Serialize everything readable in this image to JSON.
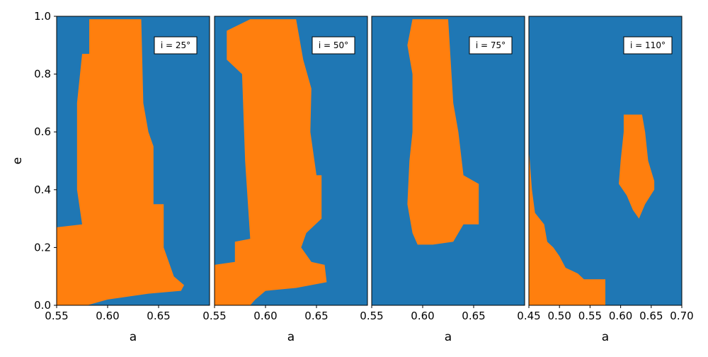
{
  "chart_data": [
    {
      "type": "area",
      "annotation": "i = 25°",
      "xlabel": "a",
      "ylabel": "e",
      "xlim": [
        0.55,
        0.7
      ],
      "ylim": [
        0,
        1
      ],
      "xticks": [
        0.55,
        {
          "value": 0.6,
          "label": "0.60"
        },
        0.65
      ],
      "yticks": [
        {
          "value": 0,
          "label": "0.0"
        },
        0.2,
        0.4,
        0.6,
        0.8,
        {
          "value": 1,
          "label": "1.0"
        }
      ],
      "background_color": "#1f77b4",
      "color": "#ff7f0e",
      "regions": [
        {
          "x": [
            0.55,
            0.55,
            0.575,
            0.57,
            0.57,
            0.575,
            0.582,
            0.582,
            0.633,
            0.635,
            0.64,
            0.645,
            0.645,
            0.655,
            0.655,
            0.665,
            0.675,
            0.672,
            0.64,
            0.62,
            0.6,
            0.58
          ],
          "y": [
            0,
            0.27,
            0.28,
            0.4,
            0.7,
            0.87,
            0.87,
            0.99,
            0.99,
            0.7,
            0.6,
            0.55,
            0.35,
            0.35,
            0.2,
            0.1,
            0.07,
            0.05,
            0.04,
            0.03,
            0.02,
            0
          ]
        }
      ]
    },
    {
      "type": "area",
      "annotation": "i = 50°",
      "xlabel": "a",
      "xlim": [
        0.55,
        0.7
      ],
      "ylim": [
        0,
        1
      ],
      "xticks": [
        0.55,
        {
          "value": 0.6,
          "label": "0.60"
        },
        0.65
      ],
      "background_color": "#1f77b4",
      "color": "#ff7f0e",
      "regions": [
        {
          "x": [
            0.55,
            0.55,
            0.57,
            0.57,
            0.585,
            0.58,
            0.577,
            0.562,
            0.562,
            0.585,
            0.63,
            0.637,
            0.645,
            0.644,
            0.65,
            0.655,
            0.655,
            0.64,
            0.635,
            0.645,
            0.658,
            0.66,
            0.63,
            0.6,
            0.59,
            0.585
          ],
          "y": [
            0,
            0.14,
            0.15,
            0.22,
            0.23,
            0.5,
            0.8,
            0.85,
            0.95,
            0.99,
            0.99,
            0.85,
            0.75,
            0.6,
            0.45,
            0.45,
            0.3,
            0.25,
            0.2,
            0.15,
            0.14,
            0.08,
            0.06,
            0.05,
            0.02,
            0
          ]
        }
      ]
    },
    {
      "type": "area",
      "annotation": "i = 75°",
      "xlabel": "a",
      "xlim": [
        0.55,
        0.7
      ],
      "ylim": [
        0,
        1
      ],
      "xticks": [
        0.55,
        {
          "value": 0.6,
          "label": "0.60"
        },
        0.65
      ],
      "background_color": "#1f77b4",
      "color": "#ff7f0e",
      "regions": [
        {
          "x": [
            0.59,
            0.625,
            0.63,
            0.635,
            0.64,
            0.655,
            0.655,
            0.64,
            0.63,
            0.61,
            0.595,
            0.59,
            0.585,
            0.587,
            0.59,
            0.59,
            0.585
          ],
          "y": [
            0.99,
            0.99,
            0.7,
            0.6,
            0.45,
            0.42,
            0.28,
            0.28,
            0.22,
            0.21,
            0.21,
            0.25,
            0.35,
            0.5,
            0.6,
            0.8,
            0.9
          ]
        }
      ]
    },
    {
      "type": "area",
      "annotation": "i = 110°",
      "xlabel": "a",
      "xlim": [
        0.45,
        0.7
      ],
      "ylim": [
        0,
        1
      ],
      "xticks": [
        0.45,
        {
          "value": 0.5,
          "label": "0.50"
        },
        0.55,
        {
          "value": 0.6,
          "label": "0.60"
        },
        0.65,
        {
          "value": 0.7,
          "label": "0.70"
        }
      ],
      "background_color": "#1f77b4",
      "color": "#ff7f0e",
      "regions": [
        {
          "x": [
            0.45,
            0.45,
            0.455,
            0.46,
            0.475,
            0.48,
            0.49,
            0.5,
            0.51,
            0.52,
            0.53,
            0.54,
            0.575,
            0.575
          ],
          "y": [
            0,
            0.54,
            0.4,
            0.32,
            0.28,
            0.22,
            0.2,
            0.17,
            0.13,
            0.12,
            0.11,
            0.09,
            0.09,
            0
          ]
        },
        {
          "x": [
            0.605,
            0.635,
            0.64,
            0.645,
            0.655,
            0.655,
            0.64,
            0.63,
            0.62,
            0.61,
            0.597,
            0.6,
            0.605
          ],
          "y": [
            0.66,
            0.66,
            0.6,
            0.5,
            0.43,
            0.4,
            0.35,
            0.3,
            0.33,
            0.38,
            0.42,
            0.5,
            0.6
          ]
        }
      ]
    }
  ]
}
